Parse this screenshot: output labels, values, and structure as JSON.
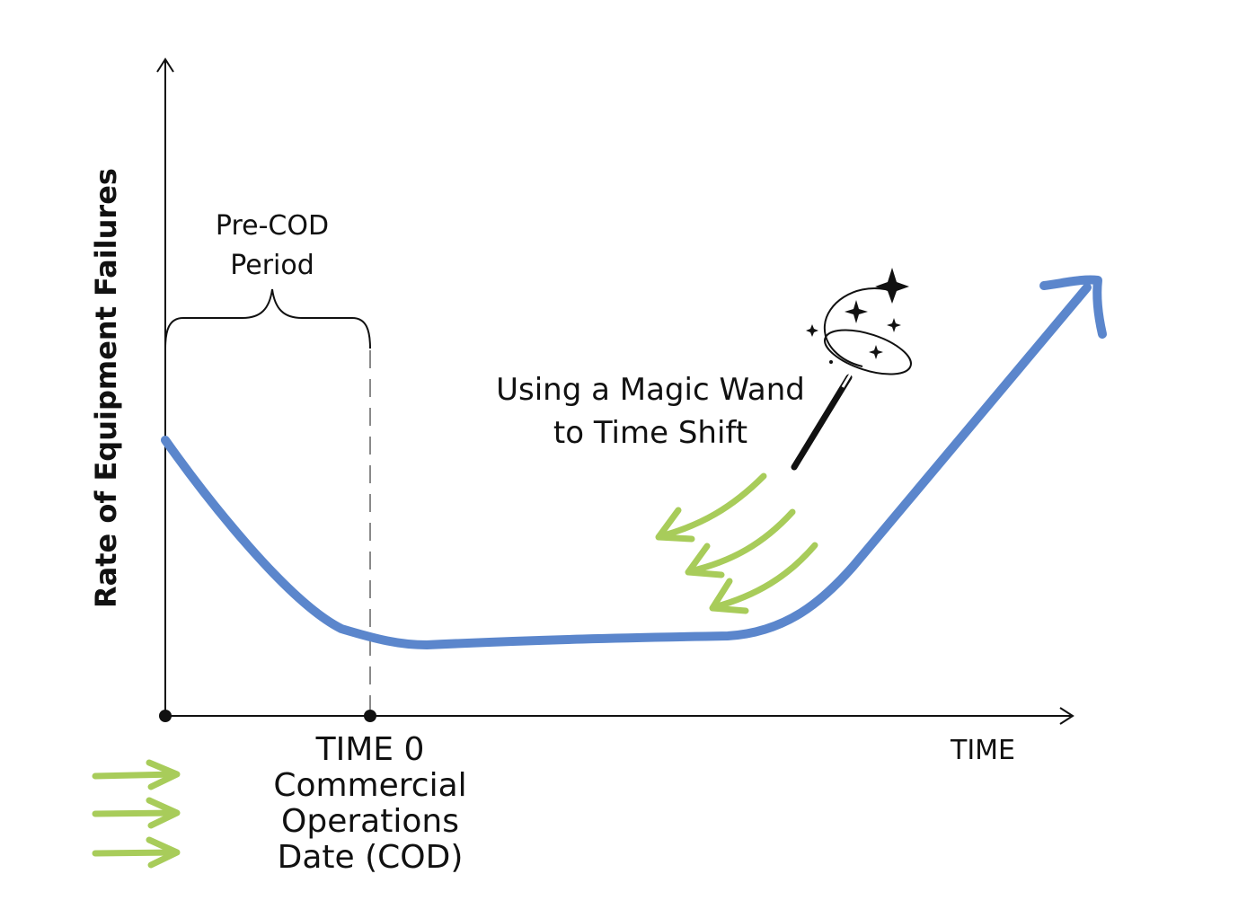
{
  "axes": {
    "y_label": "Rate of Equipment Failures",
    "x_label": "TIME"
  },
  "annotations": {
    "pre_cod": [
      "Pre-COD",
      "Period"
    ],
    "magic_wand": [
      "Using a Magic Wand",
      "to Time Shift"
    ],
    "cod": [
      "TIME 0",
      "Commercial",
      "Operations",
      "Date (COD)"
    ]
  },
  "colors": {
    "curve": "#5b86cc",
    "arrows": "#a8cc5a",
    "axis": "#111111",
    "dashed": "#8a8a8a"
  },
  "icons": {
    "wand": "magic-wand-icon",
    "sparkle": "sparkle-icon"
  }
}
